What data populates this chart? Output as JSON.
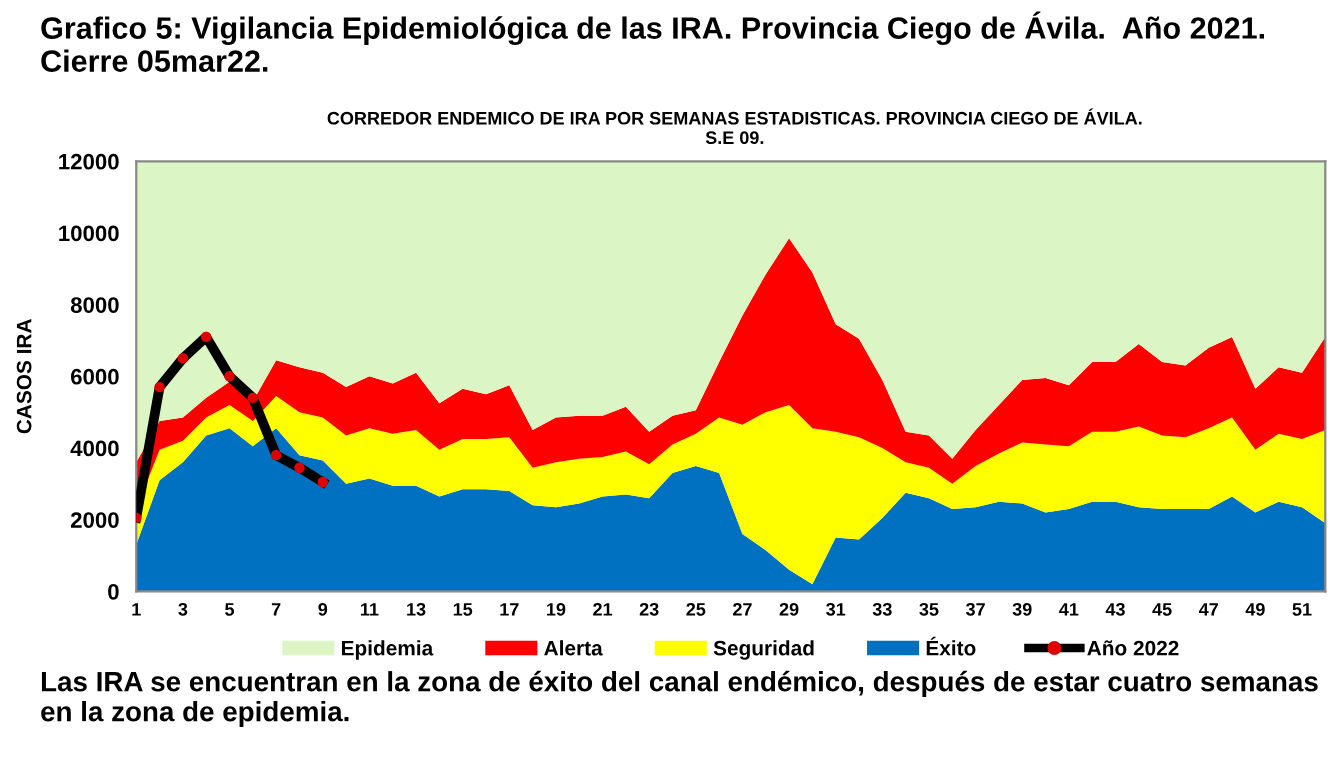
{
  "chart_data": {
    "type": "area",
    "stacked": true,
    "title": "Grafico 5: Vigilancia Epidemiológica de las IRA. Provincia Ciego de Ávila.  Año 2021. Cierre 05mar22.",
    "subtitle": "CORREDOR ENDEMICO DE IRA POR SEMANAS ESTADISTICAS. PROVINCIA CIEGO DE ÁVILA.\nS.E 09.",
    "ylabel": "CASOS IRA",
    "annotations": [
      "Las IRA se encuentran en la zona de éxito del canal endémico, después de estar cuatro semanas en la zona de epidemia."
    ],
    "x": [
      1,
      2,
      3,
      4,
      5,
      6,
      7,
      8,
      9,
      10,
      11,
      12,
      13,
      14,
      15,
      16,
      17,
      18,
      19,
      20,
      21,
      22,
      23,
      24,
      25,
      26,
      27,
      28,
      29,
      30,
      31,
      32,
      33,
      34,
      35,
      36,
      37,
      38,
      39,
      40,
      41,
      42,
      43,
      44,
      45,
      46,
      47,
      48,
      49,
      50,
      51,
      52
    ],
    "xlim": [
      1,
      52
    ],
    "xticks": [
      1,
      3,
      5,
      7,
      9,
      11,
      13,
      15,
      17,
      19,
      21,
      23,
      25,
      27,
      29,
      31,
      33,
      35,
      37,
      39,
      41,
      43,
      45,
      47,
      49,
      51
    ],
    "ylim": [
      0,
      12000
    ],
    "yticks": [
      0,
      2000,
      4000,
      6000,
      8000,
      10000,
      12000
    ],
    "series": [
      {
        "name": "Éxito",
        "color": "#0070c0",
        "values": [
          1300,
          3100,
          3600,
          4350,
          4550,
          4050,
          4550,
          3800,
          3650,
          3000,
          3150,
          2950,
          2950,
          2650,
          2850,
          2850,
          2800,
          2400,
          2350,
          2450,
          2650,
          2700,
          2600,
          3300,
          3500,
          3300,
          1600,
          1150,
          600,
          200,
          1500,
          1450,
          2050,
          2750,
          2600,
          2300,
          2350,
          2500,
          2450,
          2200,
          2300,
          2500,
          2500,
          2350,
          2300,
          2300,
          2300,
          2650,
          2200,
          2500,
          2350,
          1900
        ]
      },
      {
        "name": "Seguridad",
        "color": "#ffff00",
        "values": [
          1000,
          850,
          600,
          500,
          650,
          700,
          900,
          1200,
          1200,
          1350,
          1400,
          1450,
          1550,
          1300,
          1400,
          1400,
          1500,
          1050,
          1250,
          1250,
          1100,
          1200,
          950,
          800,
          900,
          1550,
          3050,
          3850,
          4600,
          4350,
          2950,
          2850,
          1950,
          850,
          850,
          700,
          1150,
          1350,
          1700,
          1900,
          1750,
          1950,
          1950,
          2250,
          2050,
          2000,
          2250,
          2200,
          1750,
          1900,
          1900,
          2600
        ]
      },
      {
        "name": "Alerta",
        "color": "#ff0000",
        "values": [
          1300,
          800,
          650,
          550,
          650,
          550,
          1000,
          1250,
          1250,
          1350,
          1450,
          1400,
          1600,
          1300,
          1400,
          1250,
          1450,
          1050,
          1250,
          1200,
          1150,
          1250,
          900,
          800,
          650,
          1550,
          3050,
          3850,
          4650,
          4350,
          3000,
          2750,
          1900,
          850,
          900,
          700,
          1000,
          1350,
          1750,
          1850,
          1700,
          1950,
          1950,
          2300,
          2050,
          2000,
          2250,
          2250,
          1700,
          1850,
          1850,
          2600
        ]
      },
      {
        "name": "Epidemia",
        "color": "#dcf5c4",
        "values": [
          8400,
          7250,
          7150,
          6600,
          6150,
          6700,
          5550,
          5750,
          5900,
          6300,
          6000,
          6200,
          5900,
          6750,
          6350,
          6500,
          6250,
          7500,
          7150,
          7100,
          7100,
          6850,
          7550,
          7100,
          6950,
          5600,
          4300,
          3150,
          2150,
          3100,
          4550,
          4950,
          6100,
          7550,
          7650,
          8300,
          7500,
          6800,
          6100,
          6050,
          6250,
          5600,
          5600,
          5100,
          5600,
          5700,
          5200,
          4900,
          6350,
          5750,
          5900,
          4900
        ]
      },
      {
        "name": "Año 2022",
        "type": "line",
        "color": "#000000",
        "marker": "circle",
        "colors": [
          "#e00000",
          "#e00000",
          "#e00000",
          "#e00000",
          "#e00000",
          "#e00000",
          "#e00000",
          "#e00000",
          "#e00000"
        ],
        "x": [
          1,
          2,
          3,
          4,
          5,
          6,
          7,
          8,
          9
        ],
        "values": [
          2050,
          5700,
          6500,
          7100,
          6000,
          5400,
          3800,
          3450,
          3050
        ]
      }
    ],
    "legend": "bottom"
  }
}
